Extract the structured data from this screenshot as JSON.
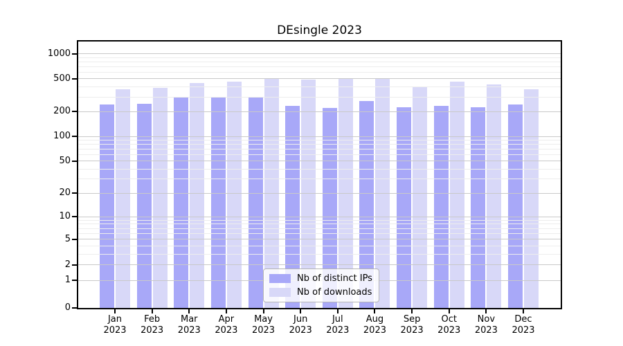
{
  "chart_data": {
    "type": "bar",
    "title": "DEsingle 2023",
    "categories": [
      "Jan",
      "Feb",
      "Mar",
      "Apr",
      "May",
      "Jun",
      "Jul",
      "Aug",
      "Sep",
      "Oct",
      "Nov",
      "Dec"
    ],
    "year_label": "2023",
    "series": [
      {
        "name": "Nb of distinct IPs",
        "color": "#a8a8f8",
        "values": [
          245,
          250,
          300,
          295,
          295,
          235,
          220,
          270,
          225,
          235,
          225,
          245
        ]
      },
      {
        "name": "Nb of downloads",
        "color": "#d8d8f8",
        "values": [
          370,
          390,
          440,
          460,
          500,
          490,
          510,
          510,
          400,
          460,
          425,
          370
        ]
      }
    ],
    "xlabel": "",
    "ylabel": "",
    "yaxis": {
      "scale": "log-like",
      "ticks": [
        0,
        1,
        2,
        5,
        10,
        20,
        50,
        100,
        200,
        500,
        1000
      ],
      "max": 1000
    },
    "grid": "on",
    "legend_position": "inside-bottom-center"
  }
}
